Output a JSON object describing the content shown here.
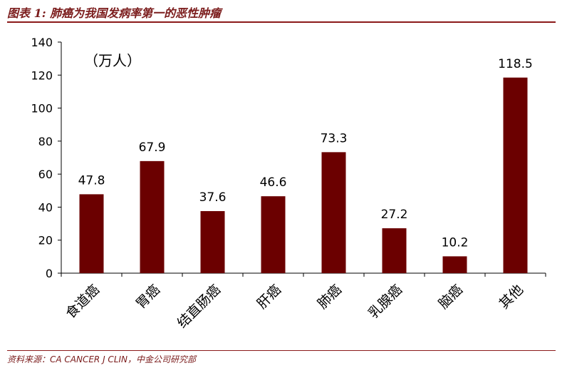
{
  "figure": {
    "title": "图表 1:  肺癌为我国发病率第一的恶性肿瘤",
    "source": "资料来源：CA CANCER J CLIN，中金公司研究部"
  },
  "colors": {
    "bar": "#6b0000",
    "accent": "#8b1a1a"
  },
  "chart_data": {
    "type": "bar",
    "unit_label": "（万人）",
    "categories": [
      "食道癌",
      "胃癌",
      "结直肠癌",
      "肝癌",
      "肺癌",
      "乳腺癌",
      "脑癌",
      "其他"
    ],
    "values": [
      47.8,
      67.9,
      37.6,
      46.6,
      73.3,
      27.2,
      10.2,
      118.5
    ],
    "data_labels": [
      "47.8",
      "67.9",
      "37.6",
      "46.6",
      "73.3",
      "27.2",
      "10.2",
      "118.5"
    ],
    "yticks": [
      0,
      20,
      40,
      60,
      80,
      100,
      120,
      140
    ],
    "ylim": [
      0,
      140
    ],
    "xlabel": "",
    "ylabel": "",
    "grid": false,
    "legend": "none"
  }
}
